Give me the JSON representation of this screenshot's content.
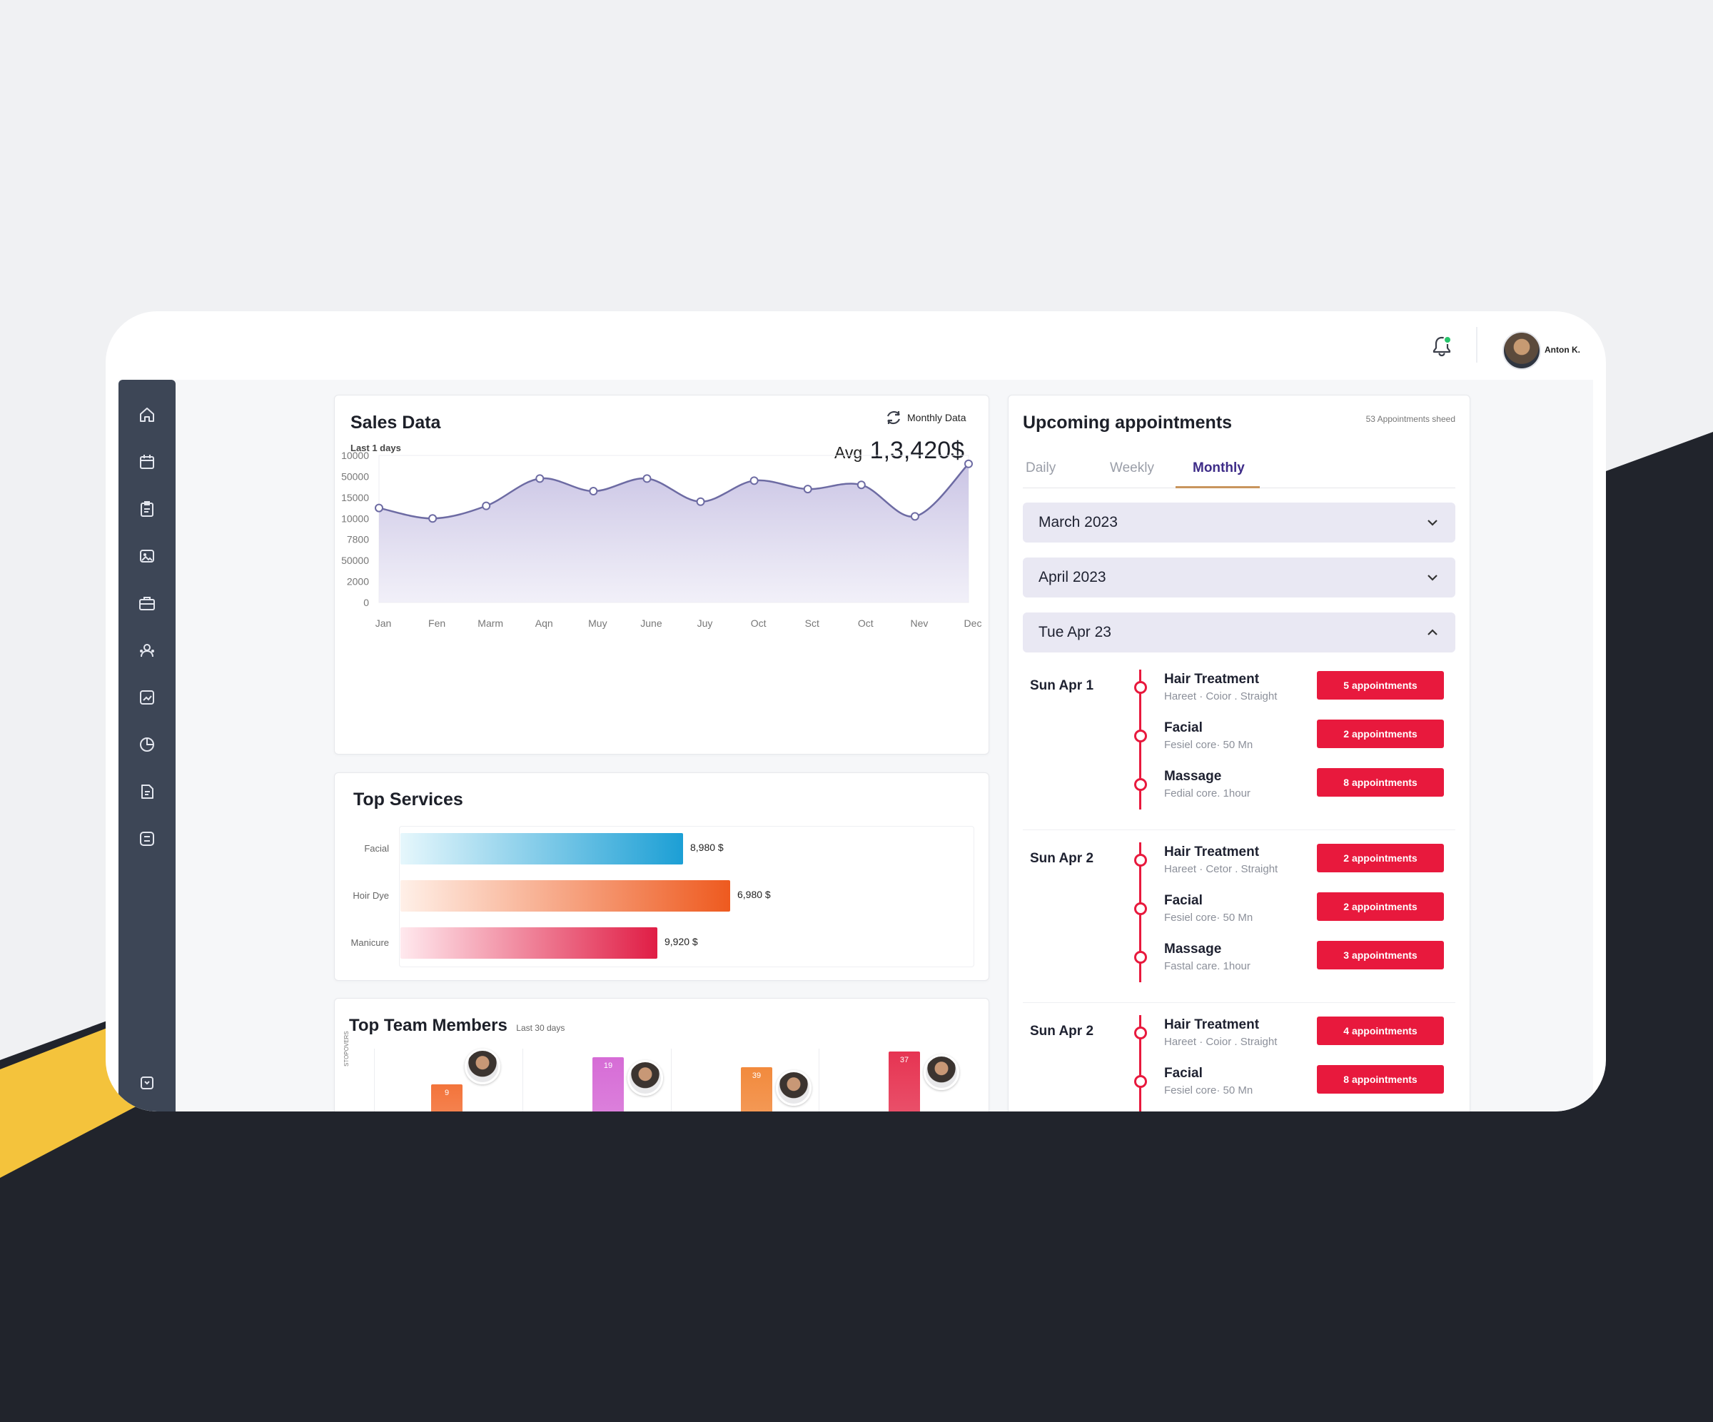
{
  "header": {
    "user_name": "Anton K.",
    "notification_icon": "bell-icon"
  },
  "sidebar": {
    "items": [
      {
        "icon": "home-icon"
      },
      {
        "icon": "calendar-icon"
      },
      {
        "icon": "clipboard-icon"
      },
      {
        "icon": "gallery-icon"
      },
      {
        "icon": "briefcase-icon"
      },
      {
        "icon": "team-icon"
      },
      {
        "icon": "chart-icon"
      },
      {
        "icon": "pie-chart-icon"
      },
      {
        "icon": "report-icon"
      },
      {
        "icon": "settings-icon"
      }
    ],
    "bottom_icon": "collapse-icon"
  },
  "sales": {
    "title": "Sales Data",
    "subtitle": "Last 1 days",
    "toggle_label": "Monthly Data",
    "avg_prefix": "Avg",
    "avg_value": "1,3,420$"
  },
  "chart_data": {
    "type": "area",
    "title": "Sales Data",
    "categories": [
      "Jan",
      "Fen",
      "Marm",
      "Aqn",
      "Muy",
      "June",
      "Juy",
      "Oct",
      "Sct",
      "Oct",
      "Nev",
      "Dec"
    ],
    "y_tick_labels": [
      "10000",
      "50000",
      "15000",
      "10000",
      "7800",
      "50000",
      "2000",
      "0"
    ],
    "y_tick_values": [
      7,
      6,
      5,
      4,
      3,
      2,
      1,
      0
    ],
    "ylim": [
      0,
      7
    ],
    "x": [
      0,
      1,
      1.9,
      2.5,
      3.05,
      3.6,
      4.1,
      4.6,
      5.1,
      5.7,
      6.2,
      6.7,
      7.3,
      7.8,
      8.35,
      8.9,
      9.5,
      10.05,
      10.35,
      11.0,
      11.35
    ],
    "values": [
      4.5,
      4.9,
      5.2,
      4.8,
      4.7,
      4.9,
      5.2,
      5.7,
      6.0,
      5.3,
      5.4,
      4.6,
      5.3,
      5.8,
      5.6,
      5.1,
      5.3,
      5.5,
      5.2,
      4.1,
      6.3
    ],
    "markers": [
      {
        "x": 0,
        "y": 4.5
      },
      {
        "x": 1,
        "y": 4.0
      },
      {
        "x": 2,
        "y": 4.6
      },
      {
        "x": 3,
        "y": 5.9
      },
      {
        "x": 4,
        "y": 5.3
      },
      {
        "x": 5,
        "y": 5.9
      },
      {
        "x": 6,
        "y": 4.8
      },
      {
        "x": 7,
        "y": 5.8
      },
      {
        "x": 8,
        "y": 5.4
      },
      {
        "x": 9,
        "y": 5.6
      },
      {
        "x": 10,
        "y": 4.1
      },
      {
        "x": 11,
        "y": 6.6
      }
    ],
    "color": "#6d6ba3",
    "fill": "#d8d3ec",
    "grid": true
  },
  "top_services": {
    "title": "Top Services",
    "items": [
      {
        "label": "Facial",
        "value": "8,980 $",
        "amount": 0.66,
        "from": "#e6f7fc",
        "to": "#1c9fd5"
      },
      {
        "label": "Hoir Dye",
        "value": "6,980 $",
        "amount": 0.77,
        "from": "#fff0e8",
        "to": "#ee5a1f"
      },
      {
        "label": "Manicure",
        "value": "9,920 $",
        "amount": 0.6,
        "from": "#ffe9ee",
        "to": "#e01d45"
      }
    ]
  },
  "team": {
    "title": "Top Team Members",
    "subtitle": "Last 30 days",
    "axis_label": "STOPOVERS",
    "members": [
      {
        "bar_label": "9",
        "color": "#f3743b"
      },
      {
        "bar_label": "19",
        "color": "#d66cd6"
      },
      {
        "bar_label": "39",
        "color": "#f28a3d"
      },
      {
        "bar_label": "37",
        "color": "#e63452"
      }
    ]
  },
  "appointments": {
    "title": "Upcoming appointments",
    "summary": "53 Appointments sheed",
    "tabs": [
      "Daily",
      "Weekly",
      "Monthly"
    ],
    "active_tab": "Monthly",
    "months": [
      "March 2023",
      "April 2023"
    ],
    "open_day": "Tue Apr 23",
    "days": [
      {
        "label": "Sun Apr 1",
        "services": [
          {
            "name": "Hair Treatment",
            "detail": "Hareet · Coior . Straight",
            "count": "5 appointments"
          },
          {
            "name": "Facial",
            "detail": "Fesiel core· 50 Mn",
            "count": "2 appointments"
          },
          {
            "name": "Massage",
            "detail": "Fedial core. 1hour",
            "count": "8 appointments"
          }
        ]
      },
      {
        "label": "Sun Apr 2",
        "services": [
          {
            "name": "Hair Treatment",
            "detail": "Hareet · Cetor . Straight",
            "count": "2 appointments"
          },
          {
            "name": "Facial",
            "detail": "Fesiel core· 50 Mn",
            "count": "2 appointments"
          },
          {
            "name": "Massage",
            "detail": "Fastal care. 1hour",
            "count": "3 appointments"
          }
        ]
      },
      {
        "label": "Sun Apr 2",
        "services": [
          {
            "name": "Hair Treatment",
            "detail": "Hareet · Coior . Straight",
            "count": "4 appointments"
          },
          {
            "name": "Facial",
            "detail": "Fesiel core· 50 Mn",
            "count": "8 appointments"
          }
        ]
      }
    ]
  }
}
